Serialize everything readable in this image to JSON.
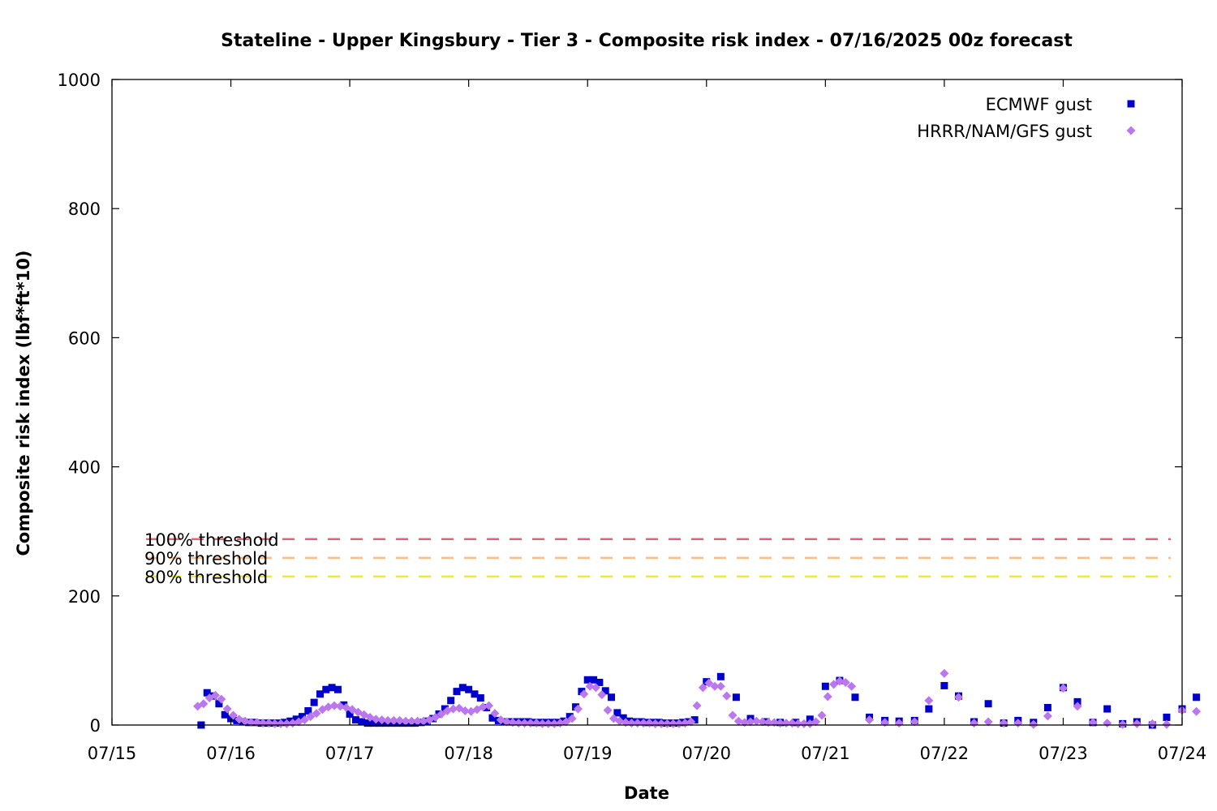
{
  "chart_data": {
    "type": "scatter",
    "title": "Stateline - Upper Kingsbury - Tier 3 - Composite risk index - 07/16/2025 00z forecast",
    "xlabel": "Date",
    "ylabel": "Composite risk index (lbf*ft*10)",
    "xlim": [
      "07/15",
      "07/24"
    ],
    "ylim": [
      0,
      1000
    ],
    "x_ticks": [
      "07/15",
      "07/16",
      "07/17",
      "07/18",
      "07/19",
      "07/20",
      "07/21",
      "07/22",
      "07/23",
      "07/24"
    ],
    "y_ticks": [
      0,
      200,
      400,
      600,
      800,
      1000
    ],
    "grid": false,
    "legend_position": "top-right",
    "x_unit_note": "x values are days after 07/15 00z",
    "series": [
      {
        "name": "ECMWF gust",
        "marker": "square",
        "color": "#0000cc",
        "points": [
          [
            0.75,
            0
          ],
          [
            0.75,
            0
          ],
          [
            0.8,
            50
          ],
          [
            0.85,
            45
          ],
          [
            0.9,
            33
          ],
          [
            0.95,
            16
          ],
          [
            1.0,
            10
          ],
          [
            1.05,
            7
          ],
          [
            1.1,
            5
          ],
          [
            1.15,
            4
          ],
          [
            1.2,
            4
          ],
          [
            1.25,
            3
          ],
          [
            1.3,
            3
          ],
          [
            1.35,
            3
          ],
          [
            1.4,
            3
          ],
          [
            1.45,
            4
          ],
          [
            1.5,
            6
          ],
          [
            1.55,
            9
          ],
          [
            1.6,
            13
          ],
          [
            1.65,
            22
          ],
          [
            1.7,
            35
          ],
          [
            1.75,
            48
          ],
          [
            1.8,
            55
          ],
          [
            1.85,
            58
          ],
          [
            1.9,
            55
          ],
          [
            1.95,
            31
          ],
          [
            2.0,
            17
          ],
          [
            2.05,
            8
          ],
          [
            2.1,
            5
          ],
          [
            2.15,
            3
          ],
          [
            2.2,
            3
          ],
          [
            2.25,
            3
          ],
          [
            2.3,
            3
          ],
          [
            2.35,
            3
          ],
          [
            2.4,
            3
          ],
          [
            2.45,
            3
          ],
          [
            2.5,
            3
          ],
          [
            2.55,
            3
          ],
          [
            2.6,
            4
          ],
          [
            2.65,
            6
          ],
          [
            2.7,
            10
          ],
          [
            2.75,
            17
          ],
          [
            2.8,
            25
          ],
          [
            2.85,
            38
          ],
          [
            2.9,
            52
          ],
          [
            2.95,
            58
          ],
          [
            3.0,
            55
          ],
          [
            3.05,
            48
          ],
          [
            3.1,
            42
          ],
          [
            3.15,
            27
          ],
          [
            3.2,
            11
          ],
          [
            3.25,
            7
          ],
          [
            3.3,
            5
          ],
          [
            3.35,
            5
          ],
          [
            3.4,
            5
          ],
          [
            3.45,
            5
          ],
          [
            3.5,
            5
          ],
          [
            3.55,
            4
          ],
          [
            3.6,
            4
          ],
          [
            3.65,
            4
          ],
          [
            3.7,
            4
          ],
          [
            3.75,
            4
          ],
          [
            3.8,
            6
          ],
          [
            3.85,
            13
          ],
          [
            3.9,
            28
          ],
          [
            3.95,
            52
          ],
          [
            4.0,
            70
          ],
          [
            4.05,
            70
          ],
          [
            4.1,
            66
          ],
          [
            4.15,
            53
          ],
          [
            4.2,
            43
          ],
          [
            4.25,
            19
          ],
          [
            4.3,
            11
          ],
          [
            4.35,
            6
          ],
          [
            4.4,
            5
          ],
          [
            4.45,
            5
          ],
          [
            4.5,
            4
          ],
          [
            4.55,
            4
          ],
          [
            4.6,
            4
          ],
          [
            4.65,
            3
          ],
          [
            4.7,
            3
          ],
          [
            4.75,
            3
          ],
          [
            4.8,
            4
          ],
          [
            4.85,
            5
          ],
          [
            4.9,
            8
          ],
          [
            5.0,
            67
          ],
          [
            5.12,
            75
          ],
          [
            5.25,
            43
          ],
          [
            5.37,
            10
          ],
          [
            5.5,
            5
          ],
          [
            5.62,
            4
          ],
          [
            5.75,
            4
          ],
          [
            5.87,
            9
          ],
          [
            6.0,
            60
          ],
          [
            6.12,
            69
          ],
          [
            6.25,
            43
          ],
          [
            6.37,
            12
          ],
          [
            6.5,
            7
          ],
          [
            6.62,
            6
          ],
          [
            6.75,
            7
          ],
          [
            6.87,
            25
          ],
          [
            7.0,
            61
          ],
          [
            7.12,
            45
          ],
          [
            7.25,
            5
          ],
          [
            7.37,
            33
          ],
          [
            7.5,
            3
          ],
          [
            7.62,
            7
          ],
          [
            7.75,
            4
          ],
          [
            7.87,
            27
          ],
          [
            8.0,
            58
          ],
          [
            8.12,
            36
          ],
          [
            8.25,
            4
          ],
          [
            8.37,
            25
          ],
          [
            8.5,
            2
          ],
          [
            8.62,
            5
          ],
          [
            8.75,
            0
          ],
          [
            8.87,
            12
          ],
          [
            9.0,
            25
          ],
          [
            9.12,
            43
          ]
        ]
      },
      {
        "name": "HRRR/NAM/GFS gust",
        "marker": "diamond",
        "color": "#bb77ee",
        "points": [
          [
            0.72,
            29
          ],
          [
            0.77,
            33
          ],
          [
            0.82,
            42
          ],
          [
            0.87,
            46
          ],
          [
            0.92,
            40
          ],
          [
            0.97,
            25
          ],
          [
            1.02,
            15
          ],
          [
            1.07,
            9
          ],
          [
            1.12,
            6
          ],
          [
            1.17,
            4
          ],
          [
            1.22,
            4
          ],
          [
            1.27,
            3
          ],
          [
            1.32,
            3
          ],
          [
            1.37,
            2
          ],
          [
            1.42,
            2
          ],
          [
            1.47,
            2
          ],
          [
            1.52,
            3
          ],
          [
            1.57,
            5
          ],
          [
            1.62,
            8
          ],
          [
            1.67,
            13
          ],
          [
            1.72,
            18
          ],
          [
            1.77,
            24
          ],
          [
            1.82,
            28
          ],
          [
            1.87,
            30
          ],
          [
            1.92,
            29
          ],
          [
            1.97,
            27
          ],
          [
            2.02,
            24
          ],
          [
            2.07,
            20
          ],
          [
            2.12,
            16
          ],
          [
            2.17,
            12
          ],
          [
            2.22,
            9
          ],
          [
            2.27,
            8
          ],
          [
            2.32,
            7
          ],
          [
            2.37,
            7
          ],
          [
            2.42,
            7
          ],
          [
            2.47,
            6
          ],
          [
            2.52,
            6
          ],
          [
            2.57,
            6
          ],
          [
            2.62,
            6
          ],
          [
            2.67,
            8
          ],
          [
            2.72,
            12
          ],
          [
            2.77,
            17
          ],
          [
            2.82,
            22
          ],
          [
            2.87,
            25
          ],
          [
            2.92,
            26
          ],
          [
            2.97,
            22
          ],
          [
            3.02,
            21
          ],
          [
            3.07,
            24
          ],
          [
            3.12,
            28
          ],
          [
            3.17,
            30
          ],
          [
            3.22,
            18
          ],
          [
            3.27,
            8
          ],
          [
            3.32,
            5
          ],
          [
            3.37,
            4
          ],
          [
            3.42,
            3
          ],
          [
            3.47,
            3
          ],
          [
            3.52,
            3
          ],
          [
            3.57,
            3
          ],
          [
            3.62,
            2
          ],
          [
            3.67,
            2
          ],
          [
            3.72,
            2
          ],
          [
            3.77,
            3
          ],
          [
            3.82,
            5
          ],
          [
            3.87,
            10
          ],
          [
            3.92,
            25
          ],
          [
            3.97,
            48
          ],
          [
            4.02,
            60
          ],
          [
            4.07,
            58
          ],
          [
            4.12,
            47
          ],
          [
            4.17,
            23
          ],
          [
            4.22,
            10
          ],
          [
            4.27,
            6
          ],
          [
            4.32,
            4
          ],
          [
            4.37,
            3
          ],
          [
            4.42,
            3
          ],
          [
            4.47,
            3
          ],
          [
            4.52,
            3
          ],
          [
            4.57,
            2
          ],
          [
            4.62,
            2
          ],
          [
            4.67,
            2
          ],
          [
            4.72,
            2
          ],
          [
            4.77,
            2
          ],
          [
            4.82,
            3
          ],
          [
            4.87,
            5
          ],
          [
            4.92,
            30
          ],
          [
            4.97,
            58
          ],
          [
            5.02,
            65
          ],
          [
            5.07,
            60
          ],
          [
            5.12,
            60
          ],
          [
            5.17,
            45
          ],
          [
            5.22,
            15
          ],
          [
            5.27,
            6
          ],
          [
            5.32,
            4
          ],
          [
            5.37,
            5
          ],
          [
            5.42,
            6
          ],
          [
            5.47,
            5
          ],
          [
            5.52,
            4
          ],
          [
            5.57,
            4
          ],
          [
            5.62,
            3
          ],
          [
            5.67,
            3
          ],
          [
            5.72,
            3
          ],
          [
            5.77,
            2
          ],
          [
            5.82,
            2
          ],
          [
            5.87,
            2
          ],
          [
            5.92,
            5
          ],
          [
            5.97,
            15
          ],
          [
            6.02,
            44
          ],
          [
            6.07,
            63
          ],
          [
            6.12,
            68
          ],
          [
            6.17,
            66
          ],
          [
            6.22,
            60
          ],
          [
            6.37,
            8
          ],
          [
            6.5,
            4
          ],
          [
            6.62,
            3
          ],
          [
            6.75,
            5
          ],
          [
            6.87,
            38
          ],
          [
            7.0,
            80
          ],
          [
            7.12,
            43
          ],
          [
            7.25,
            3
          ],
          [
            7.37,
            5
          ],
          [
            7.5,
            3
          ],
          [
            7.62,
            3
          ],
          [
            7.75,
            1
          ],
          [
            7.87,
            14
          ],
          [
            8.0,
            57
          ],
          [
            8.12,
            29
          ],
          [
            8.25,
            4
          ],
          [
            8.37,
            3
          ],
          [
            8.5,
            1
          ],
          [
            8.62,
            2
          ],
          [
            8.75,
            2
          ],
          [
            8.87,
            1
          ],
          [
            9.0,
            23
          ],
          [
            9.12,
            21
          ]
        ]
      }
    ],
    "thresholds": [
      {
        "label": "100% threshold",
        "value": 288,
        "color": "#dd6677"
      },
      {
        "label": "90% threshold",
        "value": 259,
        "color": "#ffbb88"
      },
      {
        "label": "80% threshold",
        "value": 230,
        "color": "#eeee22"
      }
    ]
  }
}
